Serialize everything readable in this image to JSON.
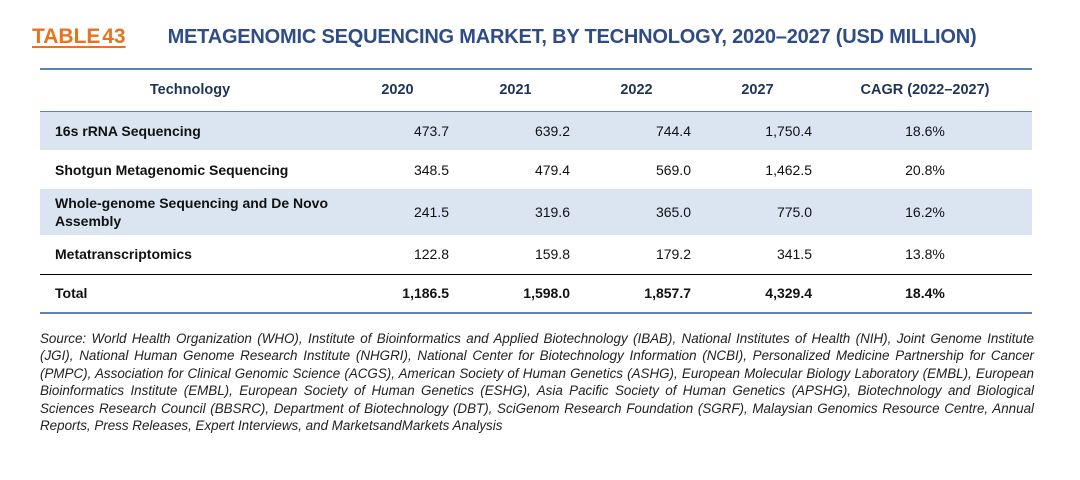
{
  "title": {
    "label": "TABLE",
    "number": "43",
    "text": "METAGENOMIC SEQUENCING MARKET, BY TECHNOLOGY, 2020–2027 (USD MILLION)"
  },
  "table": {
    "headers": [
      "Technology",
      "2020",
      "2021",
      "2022",
      "2027",
      "CAGR (2022–2027)"
    ],
    "rows": [
      {
        "name": "16s rRNA Sequencing",
        "v2020": "473.7",
        "v2021": "639.2",
        "v2022": "744.4",
        "v2027": "1,750.4",
        "cagr": "18.6%"
      },
      {
        "name": "Shotgun Metagenomic Sequencing",
        "v2020": "348.5",
        "v2021": "479.4",
        "v2022": "569.0",
        "v2027": "1,462.5",
        "cagr": "20.8%"
      },
      {
        "name": "Whole-genome Sequencing and De Novo Assembly",
        "v2020": "241.5",
        "v2021": "319.6",
        "v2022": "365.0",
        "v2027": "775.0",
        "cagr": "16.2%"
      },
      {
        "name": "Metatranscriptomics",
        "v2020": "122.8",
        "v2021": "159.8",
        "v2022": "179.2",
        "v2027": "341.5",
        "cagr": "13.8%"
      }
    ],
    "total": {
      "name": "Total",
      "v2020": "1,186.5",
      "v2021": "1,598.0",
      "v2022": "1,857.7",
      "v2027": "4,329.4",
      "cagr": "18.4%"
    }
  },
  "source": "Source: World Health Organization (WHO), Institute of Bioinformatics and Applied Biotechnology (IBAB), National Institutes of Health (NIH), Joint Genome Institute (JGI), National Human Genome Research Institute (NHGRI), National Center for Biotechnology Information (NCBI), Personalized Medicine Partnership for Cancer (PMPC), Association for Clinical Genomic Science (ACGS), American Society of Human Genetics (ASHG), European Molecular Biology Laboratory (EMBL), European Bioinformatics Institute (EMBL), European Society of Human Genetics (ESHG), Asia Pacific Society of Human Genetics (APSHG), Biotechnology and Biological Sciences Research Council (BBSRC), Department of Biotechnology (DBT), SciGenom Research Foundation (SGRF), Malaysian Genomics Resource Centre, Annual Reports, Press Releases, Expert Interviews, and MarketsandMarkets Analysis",
  "colors": {
    "accent_orange": "#e8731f",
    "title_blue": "#2e4d86",
    "rule_blue": "#5c80b8",
    "row_shade": "#dbe5f1"
  }
}
